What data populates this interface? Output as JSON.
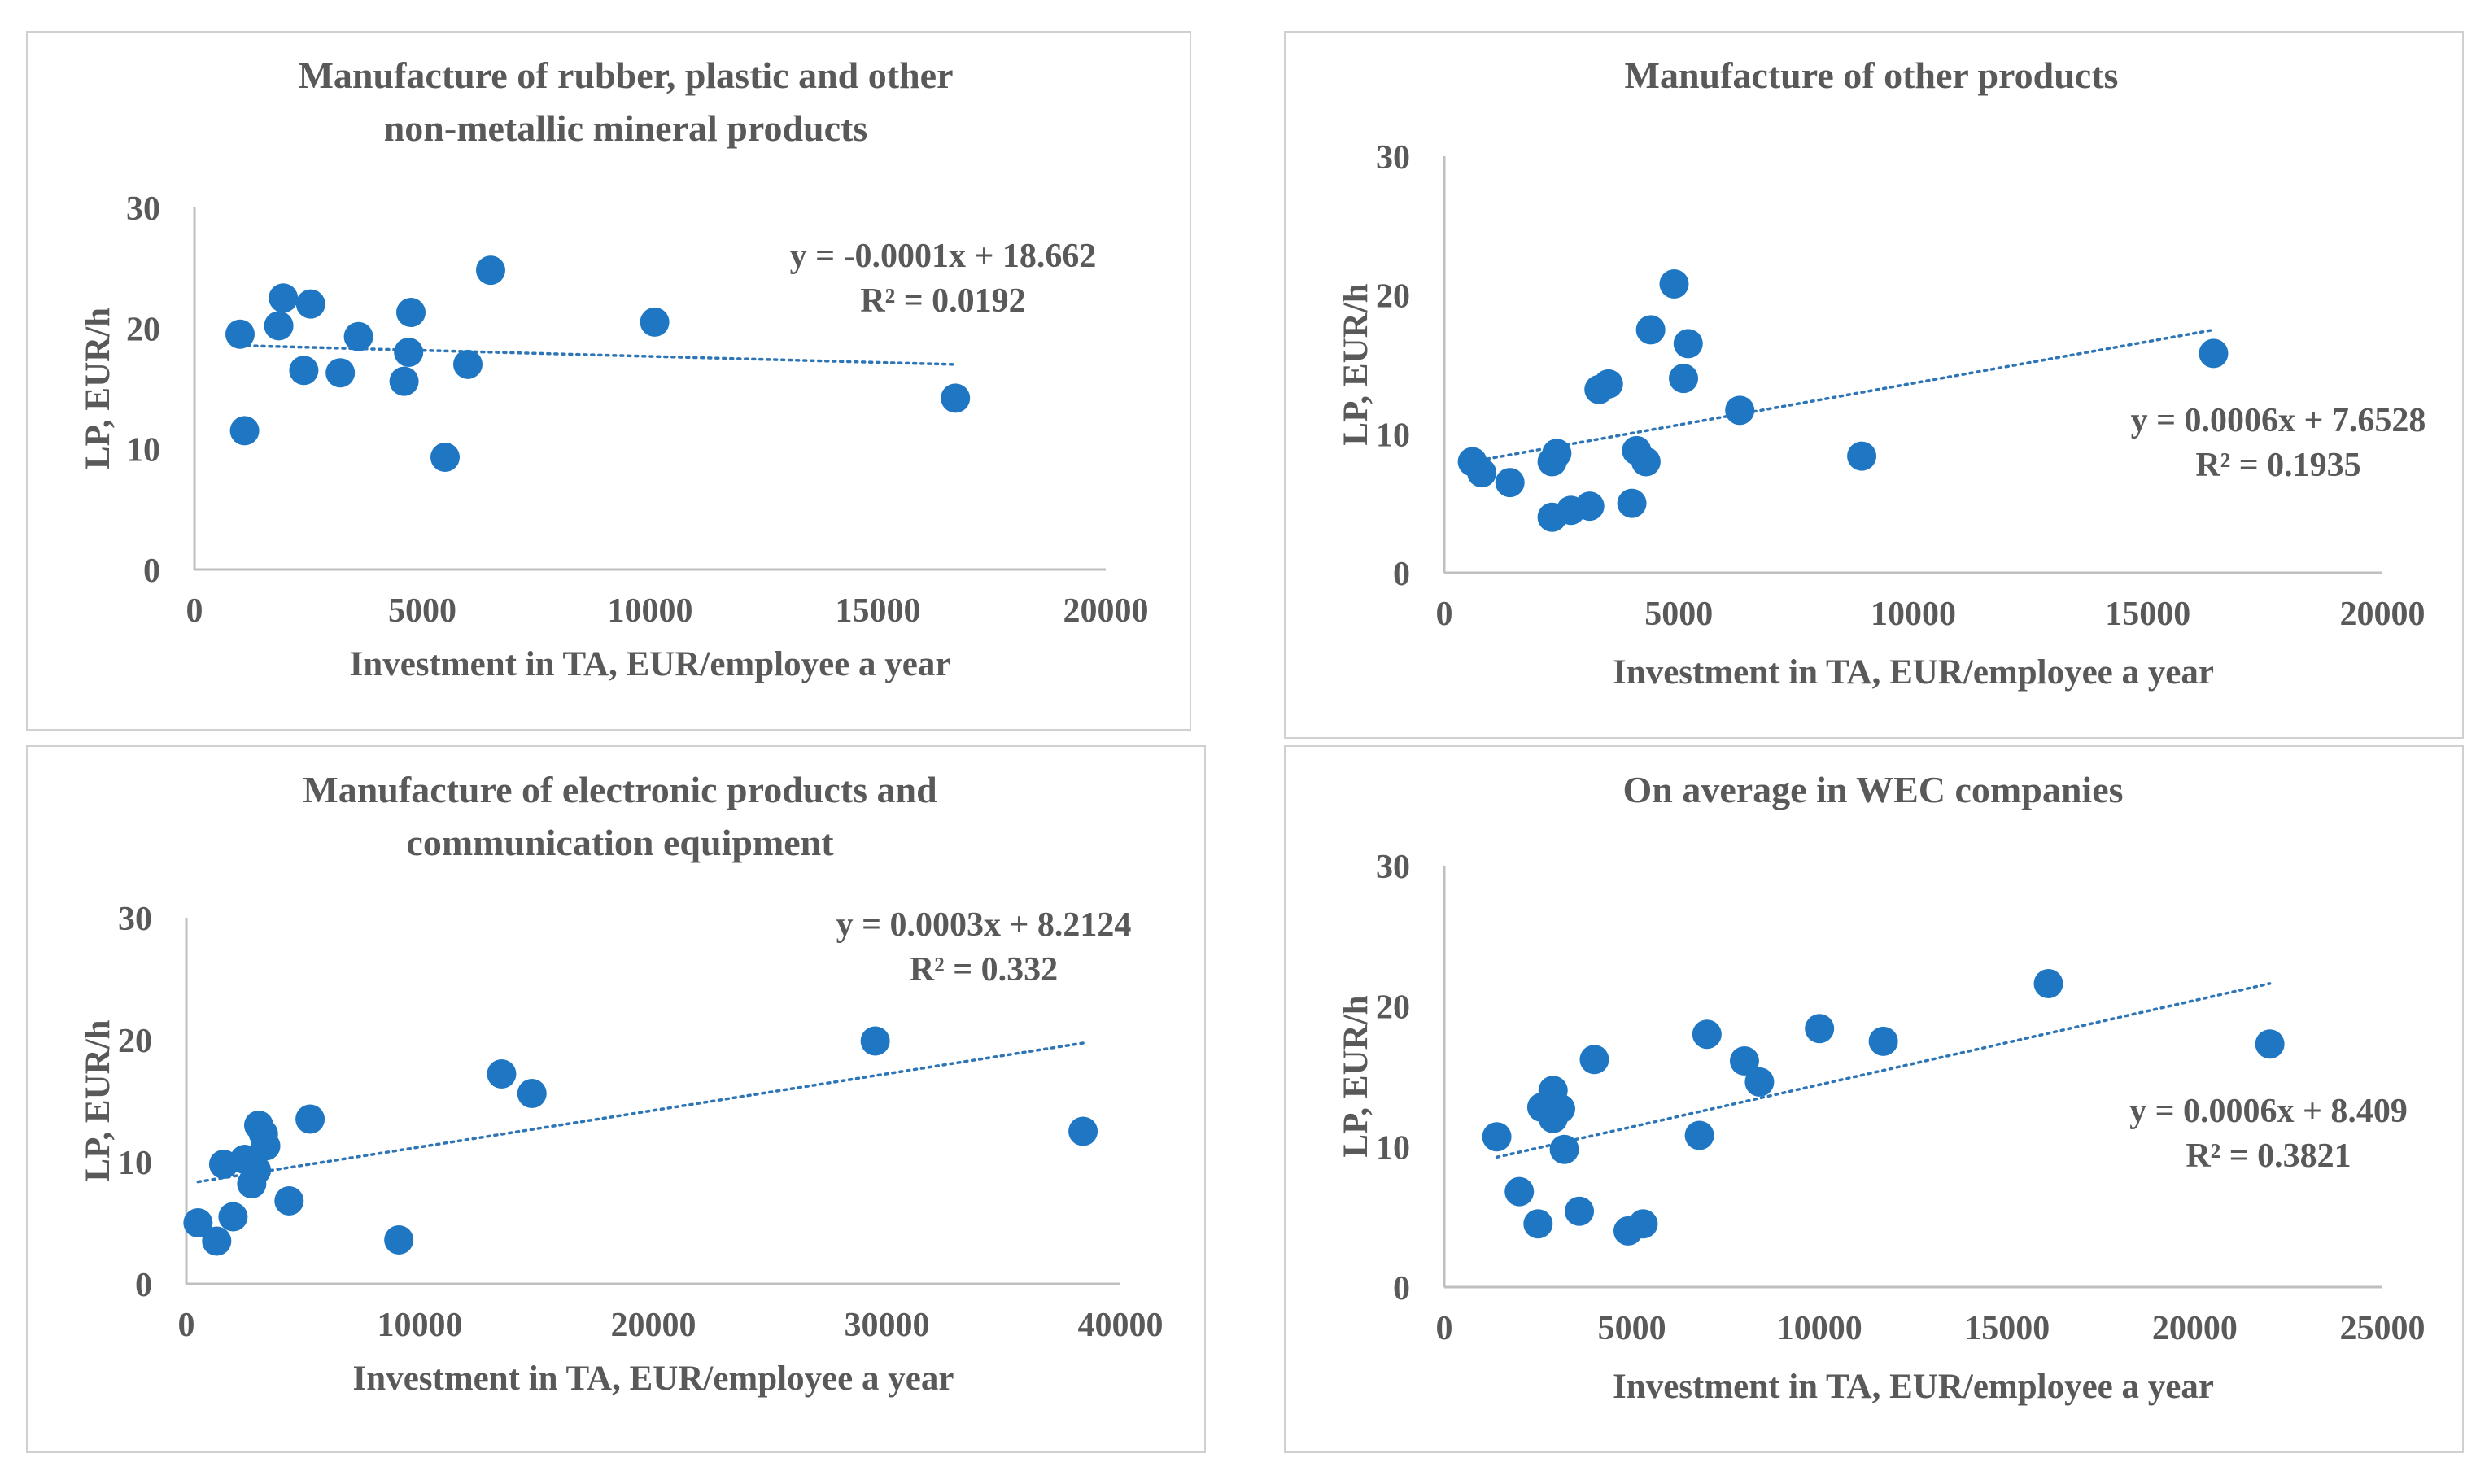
{
  "colors": {
    "point": "#1f77c4",
    "trend": "#2e75b6",
    "axis": "#bfbfbf",
    "text": "#595959"
  },
  "chart_data": [
    {
      "type": "scatter",
      "title": [
        "Manufacture  of  rubber,  plastic  and  other",
        "non-metallic  mineral  products"
      ],
      "xlabel": "Investment in TA,  EUR/employee a year",
      "ylabel": "LP, EUR/h",
      "xlim": [
        0,
        20000
      ],
      "ylim": [
        0,
        30
      ],
      "xticks": [
        0,
        5000,
        10000,
        15000,
        20000
      ],
      "yticks": [
        0,
        10,
        20,
        30
      ],
      "x": [
        1000,
        1100,
        1850,
        1950,
        2400,
        2550,
        3200,
        3600,
        4600,
        4700,
        4750,
        5500,
        6000,
        6500,
        10100,
        16700
      ],
      "y": [
        19.5,
        11.5,
        20.2,
        22.5,
        16.5,
        22,
        16.3,
        19.3,
        15.6,
        18,
        21.3,
        9.3,
        17,
        24.8,
        20.5,
        14.2
      ],
      "trendline": {
        "slope": -0.0001,
        "intercept": 18.662,
        "x_range": [
          1000,
          16700
        ]
      },
      "equation": "y = -0.0001x + 18.662",
      "r2": "R² = 0.0192"
    },
    {
      "type": "scatter",
      "title": [
        "Manufacture  of  other  products"
      ],
      "xlabel": "Investment in TA,  EUR/employee a year",
      "ylabel": "LP, EUR/h",
      "xlim": [
        0,
        20000
      ],
      "ylim": [
        0,
        30
      ],
      "xticks": [
        0,
        5000,
        10000,
        15000,
        20000
      ],
      "yticks": [
        0,
        10,
        20,
        30
      ],
      "x": [
        600,
        800,
        1400,
        2300,
        2300,
        2400,
        2700,
        3100,
        3300,
        3500,
        4000,
        4100,
        4300,
        4400,
        4900,
        5100,
        5200,
        6300,
        8900,
        16400
      ],
      "y": [
        8,
        7.2,
        6.5,
        4,
        8,
        8.6,
        4.5,
        4.8,
        13.2,
        13.6,
        5,
        8.8,
        8,
        17.5,
        20.8,
        14,
        16.5,
        11.7,
        8.4,
        15.8
      ],
      "trendline": {
        "slope": 0.0006,
        "intercept": 7.6528,
        "x_range": [
          600,
          16400
        ]
      },
      "equation": "y = 0.0006x + 7.6528",
      "r2": "R² = 0.1935"
    },
    {
      "type": "scatter",
      "title": [
        "Manufacture  of  electronic  products  and",
        "communication  equipment"
      ],
      "xlabel": "Investment in TA,  EUR/employee a year",
      "ylabel": "LP, EUR/h",
      "xlim": [
        0,
        40000
      ],
      "ylim": [
        0,
        30
      ],
      "xticks": [
        0,
        10000,
        20000,
        30000,
        40000
      ],
      "yticks": [
        0,
        10,
        20,
        30
      ],
      "x": [
        500,
        1300,
        1600,
        2000,
        2500,
        2800,
        3000,
        3100,
        3300,
        3400,
        4400,
        5300,
        9100,
        13500,
        14800,
        29500,
        38400
      ],
      "y": [
        5,
        3.5,
        9.8,
        5.5,
        10.2,
        8.2,
        9.3,
        13,
        12.3,
        11.3,
        6.8,
        13.5,
        3.6,
        17.2,
        15.6,
        19.9,
        12.5
      ],
      "trendline": {
        "slope": 0.0003,
        "intercept": 8.2124,
        "x_range": [
          500,
          38400
        ]
      },
      "equation": "y = 0.0003x + 8.2124",
      "r2": "R² = 0.332"
    },
    {
      "type": "scatter",
      "title": [
        "On average  in  WEC  companies"
      ],
      "xlabel": "Investment in TA,  EUR/employee a year",
      "ylabel": "LP, EUR/h",
      "xlim": [
        0,
        25000
      ],
      "ylim": [
        0,
        30
      ],
      "xticks": [
        0,
        5000,
        10000,
        15000,
        20000,
        25000
      ],
      "yticks": [
        0,
        10,
        20,
        30
      ],
      "x": [
        1400,
        2000,
        2500,
        2600,
        2900,
        2900,
        3100,
        3200,
        3600,
        4000,
        4900,
        5300,
        6800,
        7000,
        8000,
        8400,
        10000,
        11700,
        16100,
        22000
      ],
      "y": [
        10.7,
        6.8,
        4.5,
        12.8,
        12,
        14,
        12.7,
        9.8,
        5.4,
        16.2,
        4,
        4.5,
        10.8,
        18,
        16.1,
        14.6,
        18.4,
        17.5,
        21.6,
        17.3
      ],
      "trendline": {
        "slope": 0.0006,
        "intercept": 8.409,
        "x_range": [
          1400,
          22000
        ]
      },
      "equation": "y = 0.0006x + 8.409",
      "r2": "R² = 0.3821"
    }
  ]
}
